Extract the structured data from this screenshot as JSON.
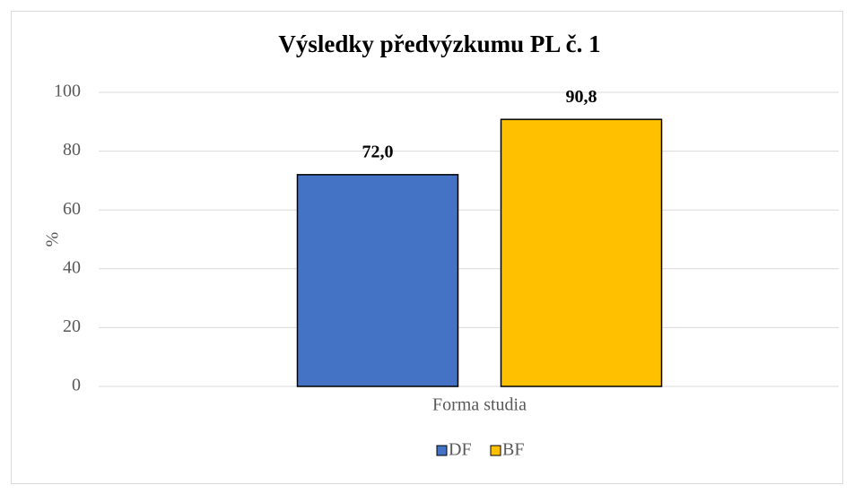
{
  "chart_data": {
    "type": "bar",
    "title": "Výsledky předvýzkumu PL č. 1",
    "y_label": "%",
    "categories": [
      "Forma studia"
    ],
    "series": [
      {
        "name": "DF",
        "color": "#4472c4",
        "values": [
          72.0
        ],
        "value_labels": [
          "72,0"
        ]
      },
      {
        "name": "BF",
        "color": "#ffc000",
        "values": [
          90.8
        ],
        "value_labels": [
          "90,8"
        ]
      }
    ],
    "ylim": [
      0,
      100
    ],
    "yticks": [
      0,
      20,
      40,
      60,
      80,
      100
    ],
    "grid": true,
    "legend": "bottom"
  }
}
